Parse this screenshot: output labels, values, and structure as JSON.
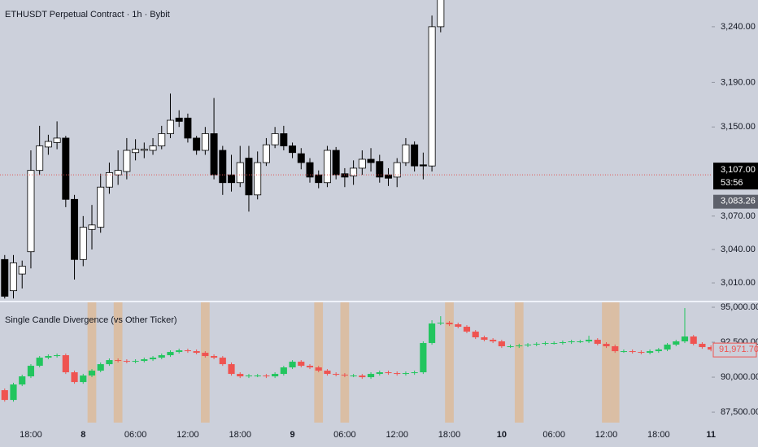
{
  "chart_data": [
    {
      "type": "candlestick",
      "title": "ETHUSDT Perpetual Contract · 1h · Bybit",
      "up_color": "#ffffff",
      "down_color": "#000000",
      "border_color": "#000000",
      "wick_color": "#000000",
      "xlim": [
        -0.54,
        81.08
      ],
      "ylim": [
        2994,
        3264
      ],
      "yticks": [
        {
          "value": 3010,
          "label": "3,010.00"
        },
        {
          "value": 3040,
          "label": "3,040.00"
        },
        {
          "value": 3070,
          "label": "3,070.00"
        },
        {
          "value": 3150,
          "label": "3,150.00"
        },
        {
          "value": 3190,
          "label": "3,190.00"
        },
        {
          "value": 3240,
          "label": "3,240.00"
        }
      ],
      "current_price": {
        "value": 3107,
        "label": "3,107.00"
      },
      "countdown": "53:56",
      "price_marker": {
        "value": 3083.26,
        "label": "3,083.26"
      },
      "ohlc": [
        [
          3031,
          3035,
          2996,
          2998
        ],
        [
          3003,
          3035,
          2996,
          3028
        ],
        [
          3018,
          3030,
          3005,
          3025
        ],
        [
          3038,
          3129,
          3023,
          3111
        ],
        [
          3111,
          3151,
          3107,
          3133
        ],
        [
          3132,
          3143,
          3125,
          3137
        ],
        [
          3136,
          3155,
          3130,
          3140
        ],
        [
          3140,
          3142,
          3078,
          3085
        ],
        [
          3085,
          3089,
          3013,
          3031
        ],
        [
          3031,
          3070,
          3025,
          3060
        ],
        [
          3058,
          3080,
          3040,
          3062
        ],
        [
          3060,
          3108,
          3055,
          3096
        ],
        [
          3096,
          3118,
          3090,
          3109
        ],
        [
          3107,
          3129,
          3098,
          3111
        ],
        [
          3110,
          3140,
          3103,
          3129
        ],
        [
          3127,
          3139,
          3120,
          3130
        ],
        [
          3129,
          3136,
          3122,
          3130
        ],
        [
          3129,
          3140,
          3125,
          3133
        ],
        [
          3133,
          3151,
          3130,
          3144
        ],
        [
          3144,
          3180,
          3140,
          3156
        ],
        [
          3158,
          3165,
          3150,
          3155
        ],
        [
          3158,
          3162,
          3136,
          3140
        ],
        [
          3140,
          3142,
          3125,
          3129
        ],
        [
          3129,
          3150,
          3125,
          3144
        ],
        [
          3144,
          3176,
          3103,
          3107
        ],
        [
          3129,
          3133,
          3089,
          3100
        ],
        [
          3107,
          3125,
          3092,
          3100
        ],
        [
          3100,
          3133,
          3096,
          3118
        ],
        [
          3122,
          3133,
          3074,
          3089
        ],
        [
          3089,
          3128,
          3085,
          3118
        ],
        [
          3118,
          3140,
          3115,
          3134
        ],
        [
          3134,
          3150,
          3131,
          3144
        ],
        [
          3144,
          3151,
          3129,
          3133
        ],
        [
          3133,
          3136,
          3122,
          3127
        ],
        [
          3126,
          3131,
          3112,
          3118
        ],
        [
          3118,
          3122,
          3100,
          3105
        ],
        [
          3107,
          3111,
          3095,
          3100
        ],
        [
          3100,
          3133,
          3096,
          3129
        ],
        [
          3129,
          3132,
          3103,
          3107
        ],
        [
          3108,
          3113,
          3096,
          3105
        ],
        [
          3106,
          3120,
          3098,
          3113
        ],
        [
          3113,
          3129,
          3107,
          3121
        ],
        [
          3121,
          3131,
          3110,
          3118
        ],
        [
          3119,
          3125,
          3100,
          3105
        ],
        [
          3107,
          3113,
          3097,
          3104
        ],
        [
          3105,
          3122,
          3096,
          3118
        ],
        [
          3118,
          3140,
          3115,
          3134
        ],
        [
          3134,
          3137,
          3110,
          3115
        ],
        [
          3116,
          3127,
          3103,
          3115
        ],
        [
          3115,
          3250,
          3110,
          3240
        ],
        [
          3240,
          3280,
          3235,
          3275
        ]
      ]
    },
    {
      "type": "candlestick",
      "title": "Single Candle Divergence (vs Other Ticker)",
      "up_color": "#22c55e",
      "down_color": "#ef5350",
      "highlight_color": "#e3b27f",
      "xlim": [
        -0.54,
        81.08
      ],
      "xticks": [
        {
          "value": 3,
          "label": "18:00"
        },
        {
          "value": 9,
          "label": "8"
        },
        {
          "value": 15,
          "label": "06:00"
        },
        {
          "value": 21,
          "label": "12:00"
        },
        {
          "value": 27,
          "label": "18:00"
        },
        {
          "value": 33,
          "label": "9"
        },
        {
          "value": 39,
          "label": "06:00"
        },
        {
          "value": 45,
          "label": "12:00"
        },
        {
          "value": 51,
          "label": "18:00"
        },
        {
          "value": 57,
          "label": "10"
        },
        {
          "value": 63,
          "label": "06:00"
        },
        {
          "value": 69,
          "label": "12:00"
        },
        {
          "value": 75,
          "label": "18:00"
        },
        {
          "value": 81,
          "label": "11"
        }
      ],
      "ylim": [
        86750,
        95350
      ],
      "yticks": [
        {
          "value": 87500,
          "label": "87,500.00"
        },
        {
          "value": 90000,
          "label": "90,000.00"
        },
        {
          "value": 92500,
          "label": "92,500.00"
        },
        {
          "value": 95000,
          "label": "95,000.00"
        }
      ],
      "last_price": {
        "value": 91971.7,
        "label": "91,971.70"
      },
      "divergence_indices": [
        10,
        13,
        23,
        36,
        39,
        51,
        59,
        69,
        70
      ],
      "ohlc": [
        [
          89070,
          89190,
          88250,
          88372
        ],
        [
          88372,
          89600,
          88250,
          89477
        ],
        [
          89477,
          90180,
          89360,
          90058
        ],
        [
          90058,
          90930,
          89940,
          90814
        ],
        [
          90814,
          91510,
          90700,
          91395
        ],
        [
          91395,
          91630,
          91280,
          91512
        ],
        [
          91512,
          91690,
          91400,
          91570
        ],
        [
          91570,
          91690,
          90230,
          90349
        ],
        [
          90349,
          90470,
          89530,
          89651
        ],
        [
          89651,
          90240,
          89530,
          90116
        ],
        [
          90116,
          90580,
          90000,
          90465
        ],
        [
          90465,
          91050,
          90350,
          90930
        ],
        [
          90930,
          91340,
          90810,
          91221
        ],
        [
          91221,
          91340,
          91050,
          91163
        ],
        [
          91163,
          91280,
          90990,
          91105
        ],
        [
          91105,
          91280,
          90990,
          91163
        ],
        [
          91163,
          91400,
          91050,
          91279
        ],
        [
          91279,
          91510,
          91160,
          91395
        ],
        [
          91395,
          91690,
          91280,
          91570
        ],
        [
          91570,
          91920,
          91450,
          91802
        ],
        [
          91802,
          92040,
          91690,
          91919
        ],
        [
          91919,
          92040,
          91740,
          91860
        ],
        [
          91860,
          91980,
          91630,
          91744
        ],
        [
          91744,
          91860,
          91400,
          91512
        ],
        [
          91512,
          91630,
          91280,
          91395
        ],
        [
          91395,
          91510,
          90810,
          90930
        ],
        [
          90930,
          91050,
          90110,
          90233
        ],
        [
          90233,
          90350,
          89940,
          90058
        ],
        [
          90058,
          90230,
          89940,
          90116
        ],
        [
          90116,
          90230,
          90000,
          90116
        ],
        [
          90116,
          90230,
          89940,
          90058
        ],
        [
          90058,
          90350,
          89940,
          90233
        ],
        [
          90233,
          90810,
          90110,
          90698
        ],
        [
          90698,
          91220,
          90580,
          91105
        ],
        [
          91105,
          91220,
          90700,
          90814
        ],
        [
          90814,
          90930,
          90580,
          90698
        ],
        [
          90698,
          90810,
          90350,
          90465
        ],
        [
          90465,
          90580,
          90110,
          90233
        ],
        [
          90233,
          90350,
          90060,
          90174
        ],
        [
          90174,
          90290,
          90000,
          90116
        ],
        [
          90116,
          90230,
          90000,
          90116
        ],
        [
          90116,
          90230,
          89880,
          90000
        ],
        [
          90000,
          90350,
          89880,
          90233
        ],
        [
          90233,
          90470,
          90110,
          90349
        ],
        [
          90349,
          90470,
          90170,
          90291
        ],
        [
          90291,
          90410,
          90110,
          90233
        ],
        [
          90233,
          90410,
          90110,
          90291
        ],
        [
          90291,
          90470,
          90170,
          90349
        ],
        [
          90349,
          92560,
          90230,
          92442
        ],
        [
          92442,
          94070,
          92320,
          93837
        ],
        [
          93837,
          94360,
          93720,
          93895
        ],
        [
          93895,
          94010,
          93660,
          93779
        ],
        [
          93779,
          93900,
          93490,
          93605
        ],
        [
          93605,
          93720,
          93140,
          93256
        ],
        [
          93256,
          93370,
          92730,
          92849
        ],
        [
          92849,
          92970,
          92560,
          92674
        ],
        [
          92674,
          92790,
          92440,
          92558
        ],
        [
          92558,
          92670,
          92090,
          92209
        ],
        [
          92209,
          92330,
          92090,
          92209
        ],
        [
          92209,
          92390,
          92090,
          92267
        ],
        [
          92267,
          92440,
          92150,
          92326
        ],
        [
          92326,
          92500,
          92210,
          92384
        ],
        [
          92384,
          92560,
          92270,
          92442
        ],
        [
          92442,
          92560,
          92330,
          92442
        ],
        [
          92442,
          92620,
          92330,
          92500
        ],
        [
          92500,
          92670,
          92380,
          92558
        ],
        [
          92558,
          92670,
          92440,
          92558
        ],
        [
          92558,
          92960,
          92440,
          92674
        ],
        [
          92674,
          92790,
          92270,
          92384
        ],
        [
          92384,
          92500,
          92090,
          92209
        ],
        [
          92209,
          92330,
          91740,
          91860
        ],
        [
          91860,
          91980,
          91740,
          91860
        ],
        [
          91860,
          91980,
          91690,
          91802
        ],
        [
          91802,
          91920,
          91630,
          91744
        ],
        [
          91744,
          91980,
          91630,
          91860
        ],
        [
          91860,
          92090,
          91740,
          91977
        ],
        [
          91977,
          92440,
          91860,
          92326
        ],
        [
          92326,
          92670,
          92210,
          92558
        ],
        [
          92558,
          94940,
          92440,
          92907
        ],
        [
          92907,
          93020,
          92270,
          92384
        ],
        [
          92384,
          92500,
          92030,
          92151
        ],
        [
          92151,
          92270,
          91850,
          91971.7
        ]
      ]
    }
  ]
}
